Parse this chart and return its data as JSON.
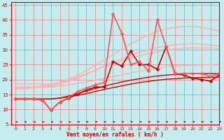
{
  "xlabel": "Vent moyen/en rafales ( km/h )",
  "ylabel": "",
  "xlim": [
    -0.5,
    23
  ],
  "ylim": [
    5,
    46
  ],
  "yticks": [
    5,
    10,
    15,
    20,
    25,
    30,
    35,
    40,
    45
  ],
  "xticks": [
    0,
    1,
    2,
    3,
    4,
    5,
    6,
    7,
    8,
    9,
    10,
    11,
    12,
    13,
    14,
    15,
    16,
    17,
    18,
    19,
    20,
    21,
    22,
    23
  ],
  "background_color": "#c5ecee",
  "grid_color": "#f08080",
  "lines": [
    {
      "x": [
        0,
        1,
        2,
        3,
        4,
        5,
        6,
        7,
        8,
        9,
        10,
        11,
        12,
        13,
        14,
        15,
        16,
        17,
        18,
        19,
        20,
        21,
        22,
        23
      ],
      "y": [
        17.5,
        17.5,
        17.5,
        17.5,
        17.5,
        17.8,
        18.2,
        18.7,
        19.2,
        19.8,
        20.4,
        21.0,
        21.6,
        22.2,
        22.8,
        23.3,
        23.8,
        24.2,
        24.5,
        24.7,
        24.8,
        24.9,
        25.0,
        25.1
      ],
      "color": "#ffb0b0",
      "lw": 1.0,
      "marker": null,
      "ls": "-"
    },
    {
      "x": [
        0,
        1,
        2,
        3,
        4,
        5,
        6,
        7,
        8,
        9,
        10,
        11,
        12,
        13,
        14,
        15,
        16,
        17,
        18,
        19,
        20,
        21,
        22,
        23
      ],
      "y": [
        18.5,
        18.5,
        18.5,
        18.5,
        18.5,
        19.0,
        19.8,
        20.8,
        22.0,
        23.2,
        24.3,
        25.3,
        26.3,
        27.2,
        28.0,
        28.7,
        29.3,
        29.8,
        30.2,
        30.5,
        30.6,
        30.6,
        30.5,
        30.3
      ],
      "color": "#ffb0b0",
      "lw": 1.0,
      "marker": null,
      "ls": "-"
    },
    {
      "x": [
        0,
        1,
        2,
        3,
        4,
        5,
        6,
        7,
        8,
        9,
        10,
        11,
        12,
        13,
        14,
        15,
        16,
        17,
        18,
        19,
        20,
        21,
        22,
        23
      ],
      "y": [
        17.0,
        17.0,
        17.2,
        17.5,
        17.8,
        18.5,
        19.5,
        20.5,
        21.8,
        23.2,
        24.5,
        25.8,
        27.0,
        28.2,
        29.2,
        30.0,
        30.7,
        31.3,
        31.7,
        31.9,
        32.0,
        31.9,
        31.6,
        31.2
      ],
      "color": "#ffb0b0",
      "lw": 1.0,
      "marker": "o",
      "ms": 2.0,
      "ls": "-"
    },
    {
      "x": [
        0,
        1,
        2,
        3,
        4,
        5,
        6,
        7,
        8,
        9,
        10,
        11,
        12,
        13,
        14,
        15,
        16,
        17,
        18,
        19,
        20,
        21,
        22,
        23
      ],
      "y": [
        17.0,
        17.2,
        17.5,
        17.8,
        18.2,
        19.0,
        20.2,
        21.5,
        23.0,
        24.8,
        26.5,
        28.3,
        30.2,
        32.0,
        33.5,
        35.0,
        36.2,
        37.0,
        37.5,
        37.8,
        37.8,
        37.5,
        37.0,
        36.3
      ],
      "color": "#ffb0b0",
      "lw": 1.0,
      "marker": "o",
      "ms": 2.0,
      "ls": "-"
    },
    {
      "x": [
        0,
        1,
        2,
        3,
        4,
        5,
        6,
        7,
        8,
        9,
        10,
        11,
        12,
        13,
        14,
        15,
        16,
        17,
        18,
        19,
        20,
        21,
        22,
        23
      ],
      "y": [
        13.5,
        13.5,
        13.5,
        13.5,
        13.5,
        13.8,
        14.2,
        14.7,
        15.3,
        16.0,
        16.7,
        17.3,
        17.9,
        18.5,
        19.0,
        19.4,
        19.8,
        20.1,
        20.3,
        20.5,
        20.6,
        20.7,
        20.7,
        20.8
      ],
      "color": "#cc0000",
      "lw": 1.0,
      "marker": null,
      "ls": "-"
    },
    {
      "x": [
        0,
        1,
        2,
        3,
        4,
        5,
        6,
        7,
        8,
        9,
        10,
        11,
        12,
        13,
        14,
        15,
        16,
        17,
        18,
        19,
        20,
        21,
        22,
        23
      ],
      "y": [
        13.5,
        13.5,
        13.5,
        13.5,
        13.5,
        13.8,
        14.5,
        15.3,
        16.2,
        17.0,
        17.8,
        18.5,
        19.2,
        19.8,
        20.3,
        20.8,
        21.2,
        21.5,
        21.7,
        21.9,
        22.0,
        22.0,
        22.0,
        22.0
      ],
      "color": "#cc0000",
      "lw": 1.0,
      "marker": null,
      "ls": "-"
    },
    {
      "x": [
        0,
        1,
        2,
        3,
        4,
        5,
        6,
        7,
        8,
        9,
        10,
        11,
        12,
        13,
        14,
        15,
        16,
        17,
        18,
        19,
        20,
        21,
        22,
        23
      ],
      "y": [
        13.5,
        13.5,
        13.5,
        13.2,
        9.8,
        12.5,
        13.8,
        15.2,
        16.5,
        17.5,
        17.5,
        26.0,
        24.5,
        29.5,
        25.0,
        25.0,
        23.5,
        31.0,
        22.0,
        21.5,
        20.5,
        20.0,
        19.5,
        21.5
      ],
      "color": "#cc0000",
      "lw": 1.2,
      "marker": "D",
      "ms": 2.5,
      "ls": "-"
    },
    {
      "x": [
        0,
        1,
        2,
        3,
        4,
        5,
        6,
        7,
        8,
        9,
        10,
        11,
        12,
        13,
        14,
        15,
        16,
        17,
        18,
        19,
        20,
        21,
        22,
        23
      ],
      "y": [
        13.5,
        13.5,
        13.5,
        13.2,
        9.8,
        12.5,
        14.0,
        16.0,
        17.2,
        18.2,
        19.0,
        42.0,
        35.5,
        25.0,
        26.0,
        23.0,
        40.0,
        31.0,
        22.0,
        22.0,
        22.0,
        22.0,
        21.0,
        22.0
      ],
      "color": "#ff5555",
      "lw": 1.2,
      "marker": "D",
      "ms": 2.5,
      "ls": "-"
    }
  ],
  "arrow_color": "#cc0000"
}
